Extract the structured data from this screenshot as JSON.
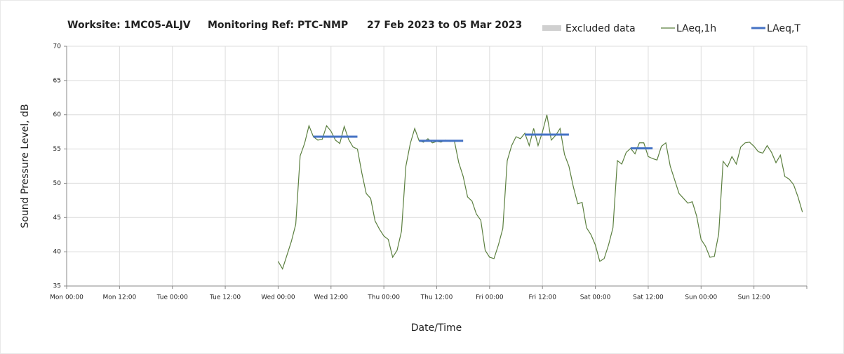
{
  "chart_data": {
    "type": "line",
    "title_parts": [
      "Worksite: 1MC05-ALJV",
      "Monitoring Ref: PTC-NMP",
      "27 Feb 2023 to 05 Mar 2023"
    ],
    "x_label": "Date/Time",
    "y_label": "Sound Pressure Level, dB",
    "xlim": [
      0,
      168
    ],
    "xticks": [
      {
        "value": 0,
        "label": "Mon 00:00"
      },
      {
        "value": 12,
        "label": "Mon 12:00"
      },
      {
        "value": 24,
        "label": "Tue 00:00"
      },
      {
        "value": 36,
        "label": "Tue 12:00"
      },
      {
        "value": 48,
        "label": "Wed 00:00"
      },
      {
        "value": 60,
        "label": "Wed 12:00"
      },
      {
        "value": 72,
        "label": "Thu 00:00"
      },
      {
        "value": 84,
        "label": "Thu 12:00"
      },
      {
        "value": 96,
        "label": "Fri 00:00"
      },
      {
        "value": 108,
        "label": "Fri 12:00"
      },
      {
        "value": 120,
        "label": "Sat 00:00"
      },
      {
        "value": 132,
        "label": "Sat 12:00"
      },
      {
        "value": 144,
        "label": "Sun 00:00"
      },
      {
        "value": 156,
        "label": "Sun 12:00"
      },
      {
        "value": 168,
        "label": ""
      }
    ],
    "ylim": [
      35,
      70
    ],
    "yticks": [
      35,
      40,
      45,
      50,
      55,
      60,
      65,
      70
    ],
    "grid": true,
    "excluded": {
      "name": "Excluded data",
      "color": "#d0d0d0"
    },
    "series": [
      {
        "name": "LAeq,1h",
        "color": "#5b7f3f",
        "x": [
          48,
          49,
          50,
          51,
          52,
          53,
          54,
          55,
          56,
          57,
          58,
          59,
          60,
          61,
          62,
          63,
          64,
          65,
          66,
          67,
          68,
          69,
          70,
          71,
          72,
          73,
          74,
          75,
          76,
          77,
          78,
          79,
          80,
          81,
          82,
          83,
          84,
          85,
          86,
          87,
          88,
          89,
          90,
          91,
          92,
          93,
          94,
          95,
          96,
          97,
          98,
          99,
          100,
          101,
          102,
          103,
          104,
          105,
          106,
          107,
          108,
          109,
          110,
          111,
          112,
          113,
          114,
          115,
          116,
          117,
          118,
          119,
          120,
          121,
          122,
          123,
          124,
          125,
          126,
          127,
          128,
          129,
          130,
          131,
          132,
          133,
          134,
          135,
          136,
          137,
          138,
          139,
          140,
          141,
          142,
          143,
          144,
          145,
          146,
          147,
          148,
          149,
          150,
          151,
          152,
          153,
          154,
          155,
          156,
          157,
          158,
          159,
          160,
          161,
          162,
          163,
          164,
          165,
          166,
          167
        ],
        "values": [
          38.6,
          37.5,
          39.5,
          41.5,
          44,
          54,
          55.8,
          58.4,
          56.8,
          56.3,
          56.4,
          58.4,
          57.6,
          56.3,
          55.8,
          58.3,
          56.4,
          55.3,
          55,
          51.5,
          48.5,
          47.8,
          44.5,
          43.3,
          42.3,
          41.8,
          39.2,
          40.2,
          43,
          52.5,
          55.8,
          58,
          56.2,
          56,
          56.5,
          55.9,
          56.1,
          56,
          56.3,
          56.1,
          56.2,
          53,
          51,
          48,
          47.4,
          45.5,
          44.6,
          40.2,
          39.2,
          39,
          41,
          43.4,
          53.3,
          55.5,
          56.8,
          56.5,
          57.3,
          55.5,
          58,
          55.5,
          57.5,
          60,
          56.3,
          57,
          58,
          54.2,
          52.5,
          49.5,
          47,
          47.2,
          43.5,
          42.5,
          41,
          38.6,
          39,
          41,
          43.5,
          53.3,
          52.8,
          54.5,
          55.1,
          54.3,
          55.9,
          55.9,
          53.9,
          53.6,
          53.4,
          55.4,
          55.9,
          52.5,
          50.5,
          48.5,
          47.8,
          47.1,
          47.3,
          45.2,
          41.8,
          40.8,
          39.2,
          39.3,
          42.6,
          53.2,
          52.4,
          53.9,
          52.8,
          55.3,
          55.9,
          56,
          55.4,
          54.6,
          54.4,
          55.5,
          54.5,
          53,
          54.1,
          51,
          50.6,
          49.8,
          48,
          45.8
        ]
      },
      {
        "name": "LAeq,T",
        "color": "#4472c4",
        "segments": [
          {
            "x": [
              56,
              66
            ],
            "value": 56.8
          },
          {
            "x": [
              80,
              90
            ],
            "value": 56.2
          },
          {
            "x": [
              104,
              114
            ],
            "value": 57.1
          },
          {
            "x": [
              128,
              133
            ],
            "value": 55.1
          }
        ]
      }
    ]
  }
}
